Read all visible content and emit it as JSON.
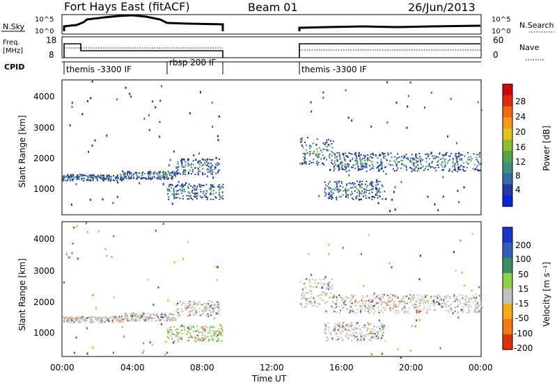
{
  "header": {
    "radar": "Fort Hays East (fitACF)",
    "beam": "Beam 01",
    "date": "26/Jun/2013"
  },
  "noise_panel": {
    "left_label": "N.Sky",
    "right_label": "N.Search",
    "left_ticks": [
      "10^5",
      "10^0"
    ],
    "right_ticks": [
      "10^5",
      "10^0"
    ]
  },
  "freq_panel": {
    "left_label_1": "Freq.",
    "left_label_2": "[MHz]",
    "right_label": "Nave",
    "left_ticks": [
      "18",
      "8"
    ],
    "right_ticks": [
      "60",
      "0"
    ]
  },
  "cpid_panel": {
    "label": "CPID",
    "segments": [
      {
        "name": "themis -3300 IF",
        "start_hour": 0,
        "end_hour": 6.0
      },
      {
        "name": "rbsp 200 IF",
        "start_hour": 6.0,
        "end_hour": 9.2
      },
      {
        "name": "themis -3300 IF",
        "start_hour": 13.6,
        "end_hour": 24
      }
    ]
  },
  "power_panel": {
    "ylabel": "Slant Range [km]",
    "yticks": [
      "1000",
      "2000",
      "3000",
      "4000"
    ],
    "colorbar_label": "Power [dB]",
    "colorbar_ticks": [
      "4",
      "8",
      "12",
      "16",
      "20",
      "24",
      "28"
    ],
    "colors": [
      "#0b23d6",
      "#243a9c",
      "#2f6fa5",
      "#3f8f80",
      "#5aa34a",
      "#8fbf2e",
      "#e3c21f",
      "#f39a16",
      "#f06a10",
      "#e32a0c",
      "#d0070a"
    ]
  },
  "velocity_panel": {
    "ylabel": "Slant Range [km]",
    "yticks": [
      "1000",
      "2000",
      "3000",
      "4000"
    ],
    "colorbar_label": "Velocity [m s⁻¹]",
    "colorbar_ticks": [
      "200",
      "100",
      "50",
      "15",
      "-15",
      "-50",
      "-100",
      "-200"
    ],
    "colors": [
      "#1c35c8",
      "#2d63b8",
      "#3b8f67",
      "#8fd04a",
      "#c0c0c0",
      "#f6a91a",
      "#f27b10",
      "#e0300c"
    ]
  },
  "xaxis": {
    "label": "Time UT",
    "ticks": [
      "00:00",
      "04:00",
      "08:00",
      "12:00",
      "16:00",
      "20:00",
      "00:00"
    ]
  },
  "chart_data": {
    "type": "heatmap",
    "title": "Fort Hays East (fitACF)",
    "xlabel": "Time UT",
    "ylabel": "Slant Range [km]",
    "xlim_hours": [
      0,
      24
    ],
    "ylim_km": [
      200,
      4500
    ],
    "data_gap_hours": [
      9.2,
      13.6
    ],
    "echo_bands": [
      {
        "start_hour": 0.0,
        "end_hour": 3.5,
        "range_km": [
          1300,
          1500
        ]
      },
      {
        "start_hour": 3.5,
        "end_hour": 6.5,
        "range_km": [
          1350,
          1600
        ]
      },
      {
        "start_hour": 6.0,
        "end_hour": 9.2,
        "range_km": [
          700,
          1200
        ]
      },
      {
        "start_hour": 6.5,
        "end_hour": 9.0,
        "range_km": [
          1500,
          2000
        ]
      },
      {
        "start_hour": 13.6,
        "end_hour": 15.5,
        "range_km": [
          1800,
          2700
        ]
      },
      {
        "start_hour": 15.5,
        "end_hour": 24.0,
        "range_km": [
          1600,
          2200
        ]
      },
      {
        "start_hour": 15.0,
        "end_hour": 18.5,
        "range_km": [
          700,
          1300
        ]
      }
    ]
  }
}
